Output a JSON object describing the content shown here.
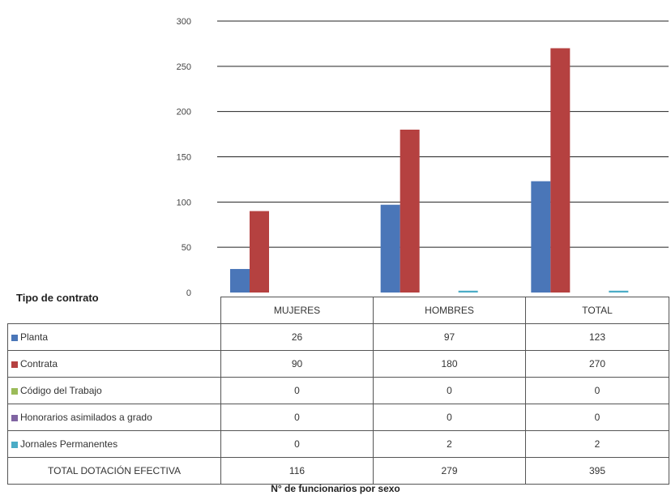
{
  "chart_data": {
    "type": "bar",
    "categories": [
      "MUJERES",
      "HOMBRES",
      "TOTAL"
    ],
    "series": [
      {
        "name": "Planta",
        "values": [
          26,
          97,
          123
        ],
        "color": "#4a76b8"
      },
      {
        "name": "Contrata",
        "values": [
          90,
          180,
          270
        ],
        "color": "#b54140"
      },
      {
        "name": "Código del Trabajo",
        "values": [
          0,
          0,
          0
        ],
        "color": "#9bbb59"
      },
      {
        "name": "Honorarios asimilados a grado",
        "values": [
          0,
          0,
          0
        ],
        "color": "#8064a2"
      },
      {
        "name": "Jornales Permanentes",
        "values": [
          0,
          2,
          2
        ],
        "color": "#4bacc6"
      }
    ],
    "ylim": [
      0,
      300
    ],
    "yticks": [
      "0",
      "50",
      "100",
      "150",
      "200",
      "250",
      "300"
    ],
    "grid": true,
    "legend": "table-left",
    "xlabel": "N° de funcionarios por sexo",
    "table_header": "Tipo de contrato",
    "totals_label": "TOTAL DOTACIÓN EFECTIVA",
    "totals": [
      116,
      279,
      395
    ]
  }
}
